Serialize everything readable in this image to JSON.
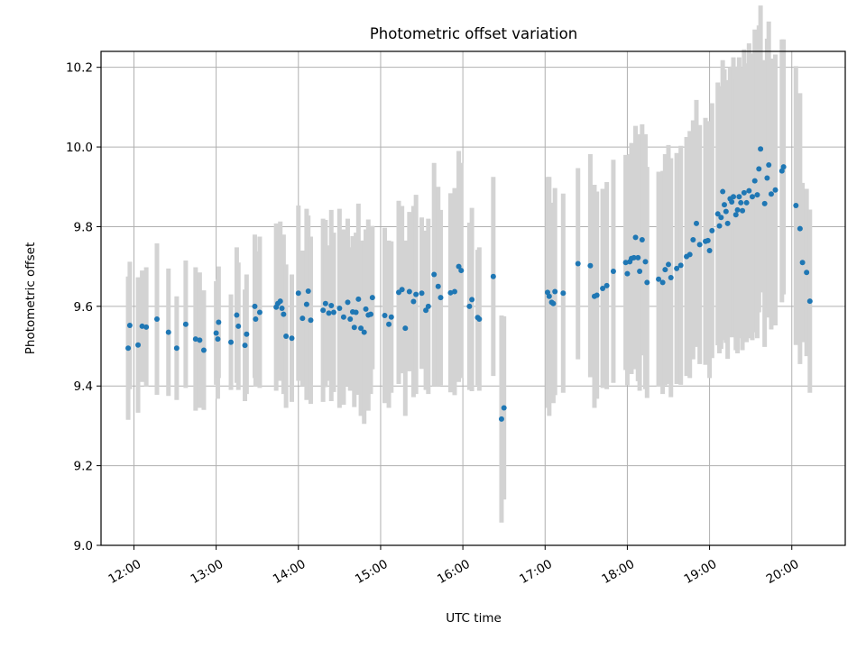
{
  "chart_data": {
    "type": "scatter",
    "title": "Photometric offset variation",
    "xlabel": "UTC time",
    "ylabel": "Photometric offset",
    "xlim": [
      11.6,
      20.65
    ],
    "ylim": [
      9.0,
      10.24
    ],
    "grid": true,
    "legend": "none",
    "colors": {
      "points": "#1f77b4",
      "errorbars": "#d3d3d3",
      "grid": "#b0b0b0"
    },
    "x_ticks": [
      {
        "value": 12,
        "label": "12:00"
      },
      {
        "value": 13,
        "label": "13:00"
      },
      {
        "value": 14,
        "label": "14:00"
      },
      {
        "value": 15,
        "label": "15:00"
      },
      {
        "value": 16,
        "label": "16:00"
      },
      {
        "value": 17,
        "label": "17:00"
      },
      {
        "value": 18,
        "label": "18:00"
      },
      {
        "value": 19,
        "label": "19:00"
      },
      {
        "value": 20,
        "label": "20:00"
      }
    ],
    "y_ticks": [
      {
        "value": 9.0,
        "label": "9.0"
      },
      {
        "value": 9.2,
        "label": "9.2"
      },
      {
        "value": 9.4,
        "label": "9.4"
      },
      {
        "value": 9.6,
        "label": "9.6"
      },
      {
        "value": 9.8,
        "label": "9.8"
      },
      {
        "value": 10.0,
        "label": "10.0"
      },
      {
        "value": 10.2,
        "label": "10.2"
      }
    ],
    "points": [
      [
        11.93,
        9.495,
        0.18
      ],
      [
        11.95,
        9.552,
        0.16
      ],
      [
        12.05,
        9.503,
        0.17
      ],
      [
        12.1,
        9.55,
        0.14
      ],
      [
        12.15,
        9.548,
        0.15
      ],
      [
        12.28,
        9.568,
        0.19
      ],
      [
        12.42,
        9.535,
        0.16
      ],
      [
        12.52,
        9.495,
        0.13
      ],
      [
        12.63,
        9.555,
        0.16
      ],
      [
        12.75,
        9.518,
        0.18
      ],
      [
        12.8,
        9.515,
        0.17
      ],
      [
        12.85,
        9.49,
        0.15
      ],
      [
        13.0,
        9.533,
        0.13
      ],
      [
        13.02,
        9.518,
        0.15
      ],
      [
        13.03,
        9.56,
        0.14
      ],
      [
        13.18,
        9.51,
        0.12
      ],
      [
        13.25,
        9.578,
        0.17
      ],
      [
        13.27,
        9.55,
        0.16
      ],
      [
        13.37,
        9.53,
        0.15
      ],
      [
        13.35,
        9.502,
        0.14
      ],
      [
        13.47,
        9.6,
        0.18
      ],
      [
        13.48,
        9.568,
        0.17
      ],
      [
        13.53,
        9.585,
        0.19
      ],
      [
        13.73,
        9.598,
        0.21
      ],
      [
        13.75,
        9.607,
        0.19
      ],
      [
        13.78,
        9.613,
        0.2
      ],
      [
        13.8,
        9.595,
        0.18
      ],
      [
        13.82,
        9.58,
        0.2
      ],
      [
        13.85,
        9.525,
        0.18
      ],
      [
        13.92,
        9.52,
        0.16
      ],
      [
        14.0,
        9.633,
        0.22
      ],
      [
        14.05,
        9.57,
        0.17
      ],
      [
        14.1,
        9.605,
        0.24
      ],
      [
        14.12,
        9.638,
        0.19
      ],
      [
        14.15,
        9.565,
        0.21
      ],
      [
        14.3,
        9.59,
        0.23
      ],
      [
        14.33,
        9.607,
        0.21
      ],
      [
        14.37,
        9.583,
        0.17
      ],
      [
        14.4,
        9.602,
        0.24
      ],
      [
        14.43,
        9.585,
        0.2
      ],
      [
        14.5,
        9.595,
        0.25
      ],
      [
        14.55,
        9.573,
        0.22
      ],
      [
        14.6,
        9.61,
        0.21
      ],
      [
        14.63,
        9.568,
        0.18
      ],
      [
        14.66,
        9.586,
        0.19
      ],
      [
        14.68,
        9.547,
        0.2
      ],
      [
        14.7,
        9.585,
        0.2
      ],
      [
        14.73,
        9.618,
        0.24
      ],
      [
        14.76,
        9.545,
        0.22
      ],
      [
        14.8,
        9.535,
        0.23
      ],
      [
        14.82,
        9.593,
        0.2
      ],
      [
        14.85,
        9.578,
        0.24
      ],
      [
        14.88,
        9.58,
        0.2
      ],
      [
        14.9,
        9.622,
        0.18
      ],
      [
        15.05,
        9.577,
        0.22
      ],
      [
        15.1,
        9.555,
        0.21
      ],
      [
        15.13,
        9.573,
        0.19
      ],
      [
        15.22,
        9.635,
        0.23
      ],
      [
        15.26,
        9.642,
        0.21
      ],
      [
        15.3,
        9.545,
        0.22
      ],
      [
        15.35,
        9.637,
        0.2
      ],
      [
        15.4,
        9.612,
        0.24
      ],
      [
        15.43,
        9.63,
        0.25
      ],
      [
        15.5,
        9.633,
        0.19
      ],
      [
        15.55,
        9.59,
        0.2
      ],
      [
        15.58,
        9.6,
        0.22
      ],
      [
        15.65,
        9.68,
        0.28
      ],
      [
        15.7,
        9.65,
        0.25
      ],
      [
        15.73,
        9.622,
        0.22
      ],
      [
        15.85,
        9.634,
        0.25
      ],
      [
        15.9,
        9.637,
        0.26
      ],
      [
        15.95,
        9.7,
        0.29
      ],
      [
        15.98,
        9.69,
        0.27
      ],
      [
        16.08,
        9.6,
        0.21
      ],
      [
        16.11,
        9.617,
        0.23
      ],
      [
        16.18,
        9.572,
        0.17
      ],
      [
        16.2,
        9.568,
        0.18
      ],
      [
        16.37,
        9.675,
        0.25
      ],
      [
        16.47,
        9.317,
        0.26
      ],
      [
        16.5,
        9.345,
        0.23
      ],
      [
        17.03,
        9.635,
        0.29
      ],
      [
        17.05,
        9.625,
        0.3
      ],
      [
        17.08,
        9.61,
        0.25
      ],
      [
        17.1,
        9.607,
        0.25
      ],
      [
        17.12,
        9.637,
        0.26
      ],
      [
        17.22,
        9.633,
        0.25
      ],
      [
        17.4,
        9.707,
        0.24
      ],
      [
        17.55,
        9.702,
        0.28
      ],
      [
        17.6,
        9.625,
        0.28
      ],
      [
        17.63,
        9.628,
        0.26
      ],
      [
        17.7,
        9.645,
        0.25
      ],
      [
        17.75,
        9.652,
        0.26
      ],
      [
        17.83,
        9.688,
        0.28
      ],
      [
        17.98,
        9.71,
        0.27
      ],
      [
        18.0,
        9.682,
        0.28
      ],
      [
        18.03,
        9.712,
        0.27
      ],
      [
        18.05,
        9.72,
        0.29
      ],
      [
        18.08,
        9.722,
        0.28
      ],
      [
        18.1,
        9.773,
        0.28
      ],
      [
        18.13,
        9.722,
        0.31
      ],
      [
        18.15,
        9.688,
        0.3
      ],
      [
        18.18,
        9.767,
        0.29
      ],
      [
        18.22,
        9.712,
        0.32
      ],
      [
        18.24,
        9.66,
        0.29
      ],
      [
        18.38,
        9.668,
        0.27
      ],
      [
        18.43,
        9.66,
        0.28
      ],
      [
        18.46,
        9.692,
        0.29
      ],
      [
        18.5,
        9.705,
        0.3
      ],
      [
        18.53,
        9.672,
        0.3
      ],
      [
        18.6,
        9.695,
        0.29
      ],
      [
        18.65,
        9.703,
        0.3
      ],
      [
        18.72,
        9.725,
        0.3
      ],
      [
        18.76,
        9.73,
        0.31
      ],
      [
        18.8,
        9.767,
        0.3
      ],
      [
        18.84,
        9.808,
        0.31
      ],
      [
        18.88,
        9.755,
        0.3
      ],
      [
        18.95,
        9.763,
        0.31
      ],
      [
        18.98,
        9.765,
        0.3
      ],
      [
        19.0,
        9.74,
        0.32
      ],
      [
        19.03,
        9.79,
        0.32
      ],
      [
        19.1,
        9.832,
        0.33
      ],
      [
        19.12,
        9.802,
        0.32
      ],
      [
        19.14,
        9.823,
        0.33
      ],
      [
        19.16,
        9.888,
        0.33
      ],
      [
        19.18,
        9.855,
        0.34
      ],
      [
        19.2,
        9.838,
        0.33
      ],
      [
        19.22,
        9.808,
        0.34
      ],
      [
        19.25,
        9.87,
        0.33
      ],
      [
        19.27,
        9.862,
        0.34
      ],
      [
        19.29,
        9.875,
        0.35
      ],
      [
        19.32,
        9.83,
        0.34
      ],
      [
        19.34,
        9.842,
        0.36
      ],
      [
        19.36,
        9.875,
        0.35
      ],
      [
        19.38,
        9.86,
        0.34
      ],
      [
        19.4,
        9.84,
        0.35
      ],
      [
        19.42,
        9.885,
        0.36
      ],
      [
        19.45,
        9.86,
        0.35
      ],
      [
        19.48,
        9.89,
        0.37
      ],
      [
        19.52,
        9.875,
        0.36
      ],
      [
        19.55,
        9.915,
        0.38
      ],
      [
        19.58,
        9.88,
        0.36
      ],
      [
        19.6,
        9.945,
        0.36
      ],
      [
        19.62,
        9.995,
        0.36
      ],
      [
        19.67,
        9.858,
        0.36
      ],
      [
        19.7,
        9.922,
        0.35
      ],
      [
        19.72,
        9.955,
        0.36
      ],
      [
        19.75,
        9.882,
        0.34
      ],
      [
        19.8,
        9.892,
        0.34
      ],
      [
        19.88,
        9.94,
        0.33
      ],
      [
        19.9,
        9.95,
        0.32
      ],
      [
        20.05,
        9.853,
        0.35
      ],
      [
        20.1,
        9.795,
        0.34
      ],
      [
        20.13,
        9.71,
        0.2
      ],
      [
        20.18,
        9.685,
        0.21
      ],
      [
        20.22,
        9.613,
        0.23
      ]
    ]
  }
}
